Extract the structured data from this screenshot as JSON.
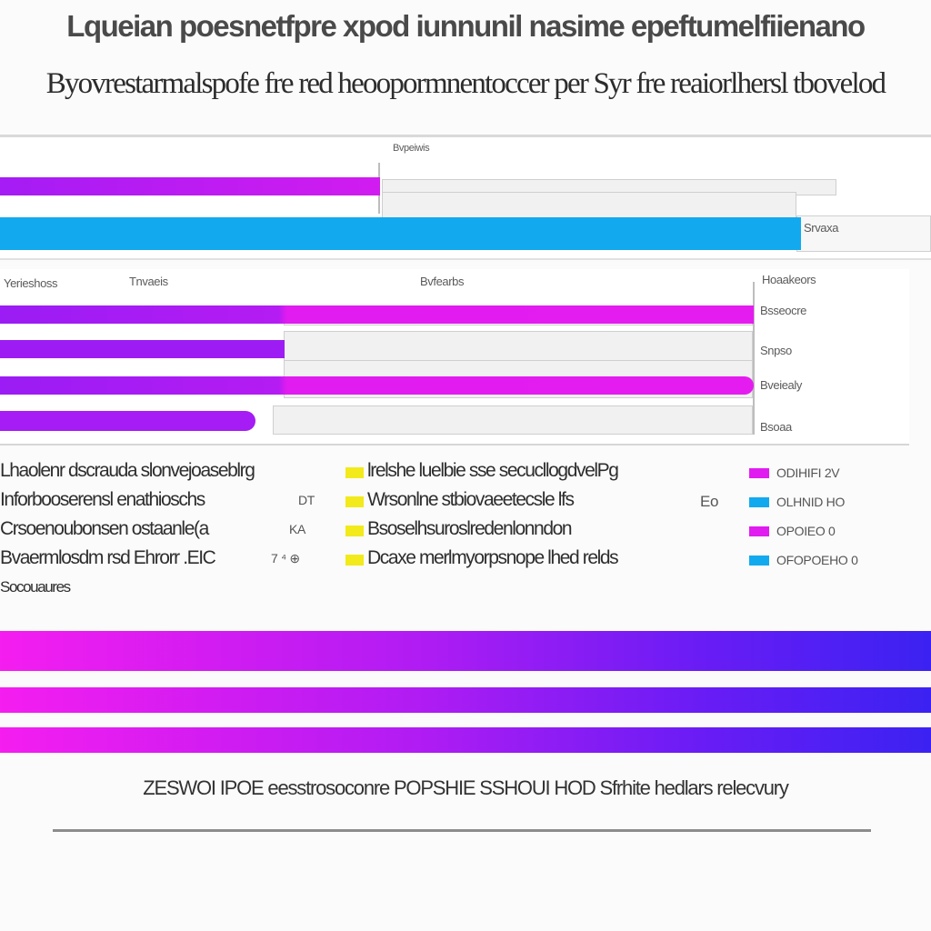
{
  "title": "Lqueian poesnetfpre xpod iunnunil nasime epeftumelfiienano",
  "subtitle": "Byovrestarmalspofe fre red heoopormnentoccer per Syr fre reaiorlhersl tbovelod",
  "colors": {
    "magenta": "#e01cf0",
    "purple": "#a21cf3",
    "cyan": "#12a9ef",
    "yellow": "#f2ea1b",
    "track": "#f1f1f1"
  },
  "top_panel": {
    "header": "Bvpeiwis",
    "right_label": "Srvaxa"
  },
  "mid_panel": {
    "col1": "Yerieshoss",
    "col2": "Tnvaeis",
    "col3": "Bvfearbs",
    "col4": "Hoaakeors",
    "row_labels": [
      "Bsseocre",
      "Snpso",
      "Bveiealy",
      "Bsoaa"
    ]
  },
  "legend": {
    "left": [
      "Lhaolenr dscrauda slonvejoaseblrg",
      "Inforbooserensl enathioschs",
      "Crsoenoubonsen ostaanle(a",
      "Bvaermlosdm rsd Ehrorr .EIC"
    ],
    "left_values": [
      "",
      "DT",
      "KA",
      "7 ⁴ ⊕"
    ],
    "left_extra": "Socouaures",
    "middle": [
      "lrelshe luelbie sse secucllogdvelPg",
      "Wrsonlne stbiovaeetecsle lfs",
      "Bsoselhsuroslredenlonndon",
      "Dcaxe merlmyorpsnope lhed relds"
    ],
    "middle_values": [
      "",
      "Eo",
      "",
      ""
    ],
    "right": [
      "ODIHIFI 2V",
      "OLHNID HO",
      "OPOIEO 0",
      "OFOPOEHO 0"
    ]
  },
  "footer": "ZESWOI IPOE eesstrosoconre POPSHIE SSHOUI HOD Sfrhite hedlars relecvury",
  "chart_data": [
    {
      "type": "bar",
      "orientation": "horizontal",
      "categories": [
        "",
        ""
      ],
      "series": [
        {
          "values": [
            40.8,
            86
          ]
        }
      ],
      "xlim": [
        0,
        100
      ]
    },
    {
      "type": "bar",
      "orientation": "horizontal",
      "categories": [
        "Bsseocre",
        "Snpso",
        "Bveiealy",
        "Bsoaa"
      ],
      "series": [
        {
          "values": [
            81,
            30.6,
            81,
            27.4
          ]
        }
      ],
      "xlim": [
        0,
        100
      ]
    },
    {
      "type": "bar",
      "orientation": "horizontal",
      "categories": [
        "",
        "",
        ""
      ],
      "series": [
        {
          "values": [
            100,
            100,
            100
          ]
        }
      ],
      "xlim": [
        0,
        100
      ]
    }
  ]
}
